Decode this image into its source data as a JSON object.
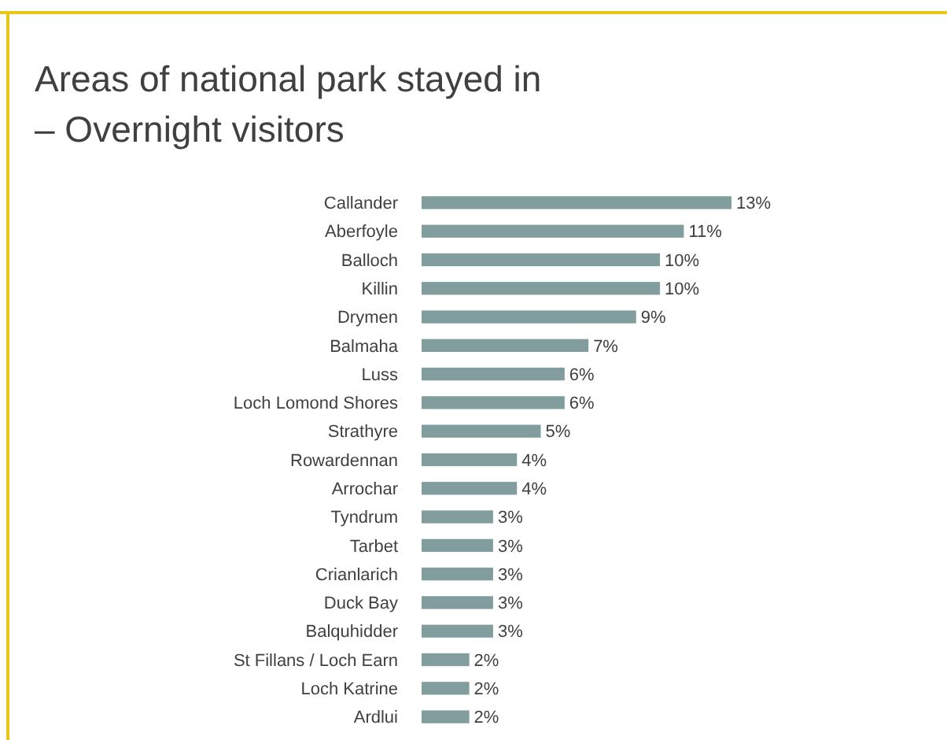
{
  "chart_data": {
    "type": "bar",
    "orientation": "horizontal",
    "title": "Areas of national park stayed in – Overnight visitors",
    "categories": [
      "Callander",
      "Aberfoyle",
      "Balloch",
      "Killin",
      "Drymen",
      "Balmaha",
      "Luss",
      "Loch Lomond Shores",
      "Strathyre",
      "Rowardennan",
      "Arrochar",
      "Tyndrum",
      "Tarbet",
      "Crianlarich",
      "Duck Bay",
      "Balquhidder",
      "St Fillans / Loch Earn",
      "Loch Katrine",
      "Ardlui"
    ],
    "values": [
      13,
      11,
      10,
      10,
      9,
      7,
      6,
      6,
      5,
      4,
      4,
      3,
      3,
      3,
      3,
      3,
      2,
      2,
      2
    ],
    "value_labels": [
      "13%",
      "11%",
      "10%",
      "10%",
      "9%",
      "7%",
      "6%",
      "6%",
      "5%",
      "4%",
      "4%",
      "3%",
      "3%",
      "3%",
      "3%",
      "3%",
      "2%",
      "2%",
      "2%"
    ],
    "color": "#829d9d"
  }
}
